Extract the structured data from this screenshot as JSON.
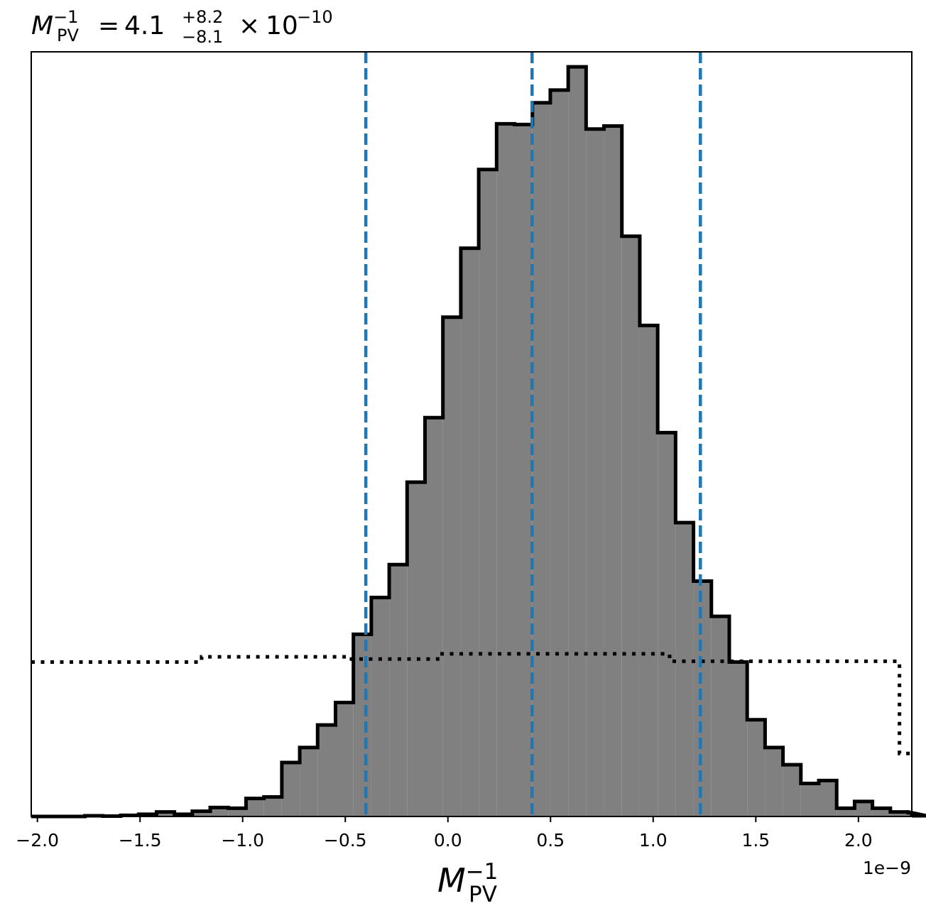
{
  "chart_data": {
    "type": "histogram",
    "title": {
      "symbol": "M",
      "subscript": "PV",
      "superscript": "−1",
      "equals": "=",
      "value": "4.1",
      "upper": "+8.2",
      "lower": "−8.1",
      "times": "×",
      "base": "10",
      "exponent": "−10"
    },
    "xlabel": {
      "symbol": "M",
      "subscript": "PV",
      "superscript": "−1"
    },
    "x_offset_label": "1e−9",
    "x_scale": 1e-09,
    "xlim": [
      -2.03,
      2.26
    ],
    "ylim": [
      0,
      1.02
    ],
    "y_ticks_shown": false,
    "grid": false,
    "x_ticks": [
      {
        "value": -2.0,
        "label": "−2.0"
      },
      {
        "value": -1.5,
        "label": "−1.5"
      },
      {
        "value": -1.0,
        "label": "−1.0"
      },
      {
        "value": -0.5,
        "label": "−0.5"
      },
      {
        "value": 0.0,
        "label": "0.0"
      },
      {
        "value": 0.5,
        "label": "0.5"
      },
      {
        "value": 1.0,
        "label": "1.0"
      },
      {
        "value": 1.5,
        "label": "1.5"
      },
      {
        "value": 2.0,
        "label": "2.0"
      }
    ],
    "histogram": {
      "bin_start": -2.03,
      "bin_width": 0.0872,
      "fill_color": "#808080",
      "edge_color": "#000000",
      "values": [
        0,
        0,
        0,
        0.001,
        0.0005,
        0.0015,
        0.003,
        0.006,
        0.003,
        0.007,
        0.012,
        0.011,
        0.024,
        0.026,
        0.072,
        0.092,
        0.122,
        0.152,
        0.243,
        0.292,
        0.336,
        0.446,
        0.532,
        0.666,
        0.758,
        0.863,
        0.924,
        0.923,
        0.952,
        0.969,
        1.0,
        0.917,
        0.921,
        0.774,
        0.655,
        0.512,
        0.392,
        0.314,
        0.267,
        0.206,
        0.129,
        0.092,
        0.069,
        0.044,
        0.048,
        0.011,
        0.02,
        0.011,
        0.006,
        0.005,
        0.001
      ]
    },
    "prior": {
      "style": "dotted",
      "color": "#000000",
      "steps": [
        {
          "x": -2.03,
          "y": 0.206
        },
        {
          "x": -1.2,
          "y": 0.213
        },
        {
          "x": -0.49,
          "y": 0.21
        },
        {
          "x": -0.05,
          "y": 0.217
        },
        {
          "x": 1.08,
          "y": 0.207
        },
        {
          "x": 2.2,
          "y": 0.084
        },
        {
          "x": 2.26,
          "y": 0.084
        }
      ]
    },
    "quantile_lines": {
      "color": "#1f77b4",
      "style": "dashed",
      "values": [
        -0.4,
        0.41,
        1.23
      ]
    }
  }
}
